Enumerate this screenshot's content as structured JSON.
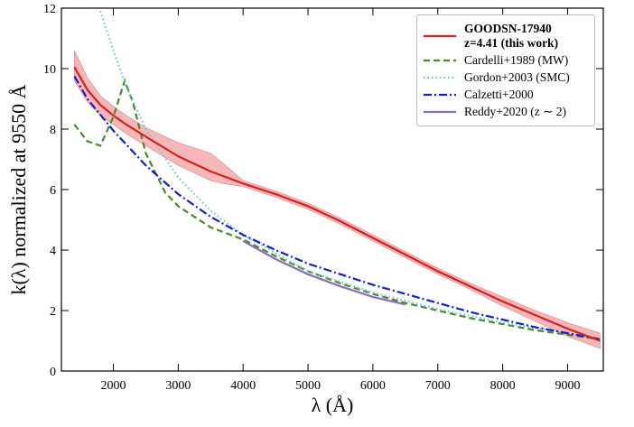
{
  "chart_data": {
    "type": "line",
    "xlabel": "λ (Å)",
    "ylabel": "k(λ) normalized at 9550 Å",
    "xlim": [
      1200,
      9550
    ],
    "ylim": [
      0,
      12
    ],
    "xticks": [
      2000,
      3000,
      4000,
      5000,
      6000,
      7000,
      8000,
      9000
    ],
    "yticks": [
      0,
      2,
      4,
      6,
      8,
      10,
      12
    ],
    "band": {
      "color": "#f2a0a0",
      "x": [
        1400,
        1600,
        1800,
        2000,
        2200,
        2500,
        3000,
        3500,
        3700,
        4000,
        4500,
        5000,
        5500,
        6000,
        6500,
        7000,
        7500,
        8000,
        8500,
        9000,
        9500
      ],
      "upper": [
        10.6,
        9.7,
        9.1,
        8.75,
        8.45,
        8.05,
        7.55,
        7.2,
        6.85,
        6.3,
        5.95,
        5.55,
        5.05,
        4.5,
        3.95,
        3.4,
        2.9,
        2.45,
        2.0,
        1.6,
        1.25
      ],
      "lower": [
        9.6,
        8.9,
        8.45,
        8.15,
        7.85,
        7.45,
        6.8,
        6.3,
        6.2,
        6.1,
        5.75,
        5.35,
        4.85,
        4.3,
        3.75,
        3.2,
        2.7,
        2.15,
        1.65,
        1.15,
        0.75
      ]
    },
    "series": [
      {
        "name": "GOODSN-17940\nz=4.41 (this work)",
        "color": "#d42020",
        "style": "solid",
        "bold": true,
        "x": [
          1400,
          1600,
          1800,
          2000,
          2200,
          2500,
          3000,
          3500,
          4000,
          4500,
          5000,
          5500,
          6000,
          6500,
          7000,
          7500,
          8000,
          8500,
          9000,
          9500
        ],
        "values": [
          10.05,
          9.3,
          8.8,
          8.45,
          8.15,
          7.75,
          7.1,
          6.6,
          6.2,
          5.85,
          5.45,
          4.95,
          4.4,
          3.85,
          3.3,
          2.8,
          2.3,
          1.85,
          1.4,
          1.0
        ]
      },
      {
        "name": "Cardelli+1989 (MW)",
        "color": "#4a8a2a",
        "style": "dashed",
        "x": [
          1400,
          1600,
          1800,
          2000,
          2175,
          2300,
          2500,
          2800,
          3000,
          3500,
          4000,
          4500,
          5000,
          5500,
          6000,
          6500,
          7000,
          7500,
          8000,
          8500,
          9000,
          9500
        ],
        "values": [
          8.15,
          7.6,
          7.45,
          8.4,
          9.6,
          8.9,
          7.2,
          5.9,
          5.45,
          4.75,
          4.35,
          3.8,
          3.3,
          2.9,
          2.55,
          2.25,
          2.0,
          1.75,
          1.55,
          1.35,
          1.2,
          1.05
        ]
      },
      {
        "name": "Gordon+2003 (SMC)",
        "color": "#6ec6d8",
        "style": "dotted",
        "x": [
          1800,
          2000,
          2200,
          2500,
          3000,
          3500,
          4000,
          5000,
          6000,
          7000,
          8000,
          9000,
          9500
        ],
        "values": [
          11.9,
          10.6,
          9.4,
          8.0,
          6.4,
          5.3,
          4.5,
          3.3,
          2.6,
          2.05,
          1.6,
          1.25,
          1.05
        ]
      },
      {
        "name": "Calzetti+2000",
        "color": "#1020d0",
        "style": "dashdot",
        "x": [
          1400,
          1600,
          2000,
          2500,
          3000,
          3500,
          4000,
          4500,
          5000,
          5500,
          6000,
          6500,
          7000,
          7500,
          8000,
          8500,
          9000,
          9500
        ],
        "values": [
          9.75,
          9.0,
          7.95,
          6.8,
          5.85,
          5.1,
          4.5,
          4.0,
          3.55,
          3.2,
          2.85,
          2.55,
          2.25,
          1.95,
          1.7,
          1.45,
          1.25,
          1.05
        ]
      },
      {
        "name": "Reddy+2020 (z ∼ 2)",
        "color": "#8a6cb8",
        "style": "solid",
        "x": [
          4000,
          4500,
          5000,
          5500,
          6000,
          6500
        ],
        "values": [
          4.3,
          3.7,
          3.2,
          2.8,
          2.45,
          2.2
        ]
      }
    ]
  }
}
